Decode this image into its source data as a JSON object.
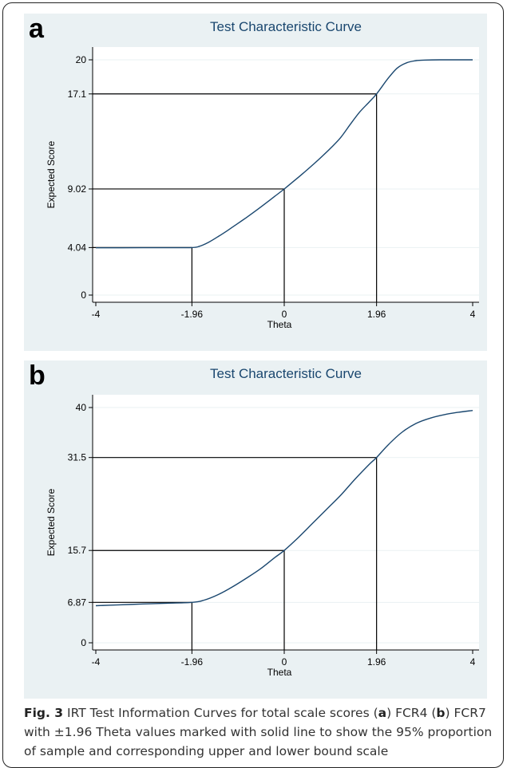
{
  "chart_data": [
    {
      "panel": "a",
      "type": "line",
      "title": "Test Characteristic Curve",
      "xlabel": "Theta",
      "ylabel": "Expected Score",
      "xlim": [
        -4,
        4
      ],
      "ylim": [
        0,
        20
      ],
      "xticks": [
        -4,
        -1.96,
        0,
        1.96,
        4
      ],
      "xtick_labels": [
        "-4",
        "-1.96",
        "0",
        "1.96",
        "4"
      ],
      "yticks": [
        0,
        4.04,
        9.02,
        17.1,
        20
      ],
      "ytick_labels": [
        "0",
        "4.04",
        "9.02",
        "17.1",
        "20"
      ],
      "grid": true,
      "series": [
        {
          "x": [
            -4,
            -3,
            -2.5,
            -1.96,
            -1.8,
            -1.6,
            -1.4,
            -1.2,
            -1,
            -0.8,
            -0.6,
            -0.4,
            -0.2,
            0,
            0.2,
            0.4,
            0.6,
            0.8,
            1,
            1.2,
            1.4,
            1.6,
            1.8,
            1.96,
            2.2,
            2.4,
            2.6,
            2.8,
            3,
            3.3,
            3.6,
            4
          ],
          "y": [
            4.02,
            4.03,
            4.03,
            4.04,
            4.15,
            4.5,
            4.98,
            5.5,
            6.05,
            6.6,
            7.18,
            7.78,
            8.4,
            9.02,
            9.68,
            10.35,
            11.05,
            11.78,
            12.55,
            13.4,
            14.5,
            15.55,
            16.4,
            17.1,
            18.4,
            19.3,
            19.75,
            19.93,
            19.98,
            20.0,
            20.0,
            20.0
          ]
        }
      ],
      "reference_lines": [
        {
          "theta": -1.96,
          "score": 4.04
        },
        {
          "theta": 0,
          "score": 9.02
        },
        {
          "theta": 1.96,
          "score": 17.1
        }
      ]
    },
    {
      "panel": "b",
      "type": "line",
      "title": "Test Characteristic Curve",
      "xlabel": "Theta",
      "ylabel": "Expected Score",
      "xlim": [
        -4,
        4
      ],
      "ylim": [
        0,
        40
      ],
      "xticks": [
        -4,
        -1.96,
        0,
        1.96,
        4
      ],
      "xtick_labels": [
        "-4",
        "-1.96",
        "0",
        "1.96",
        "4"
      ],
      "yticks": [
        0,
        6.87,
        15.7,
        31.5,
        40
      ],
      "ytick_labels": [
        "0",
        "6.87",
        "15.7",
        "31.5",
        "40"
      ],
      "grid": true,
      "series": [
        {
          "x": [
            -4,
            -3.5,
            -3,
            -2.5,
            -1.96,
            -1.7,
            -1.4,
            -1.1,
            -0.8,
            -0.5,
            -0.2,
            0,
            0.3,
            0.6,
            0.9,
            1.2,
            1.5,
            1.8,
            1.96,
            2.2,
            2.5,
            2.8,
            3.1,
            3.4,
            3.7,
            4
          ],
          "y": [
            6.3,
            6.45,
            6.6,
            6.73,
            6.87,
            7.25,
            8.2,
            9.5,
            11.0,
            12.6,
            14.5,
            15.7,
            17.9,
            20.3,
            22.7,
            25.1,
            27.8,
            30.3,
            31.5,
            33.6,
            35.8,
            37.3,
            38.2,
            38.8,
            39.2,
            39.5
          ]
        }
      ],
      "reference_lines": [
        {
          "theta": -1.96,
          "score": 6.87
        },
        {
          "theta": 0,
          "score": 15.7
        },
        {
          "theta": 1.96,
          "score": 31.5
        }
      ]
    }
  ],
  "panel_labels": {
    "a": "a",
    "b": "b"
  },
  "caption": {
    "label": "Fig. 3",
    "p1": " IRT Test Information Curves for total scale scores (",
    "a": "a",
    "p2": ") FCR4 (",
    "b": "b",
    "p3": ") FCR7 with ±1.96 Theta values marked with solid line to show the 95% proportion of sample and corresponding upper and lower bound scale"
  },
  "colors": {
    "panel_bg": "#eaf1f3",
    "plot_bg": "#ffffff",
    "curve": "#1a476f",
    "title": "#1a476f",
    "grid": "#eaf1f3",
    "refline": "#000000"
  }
}
